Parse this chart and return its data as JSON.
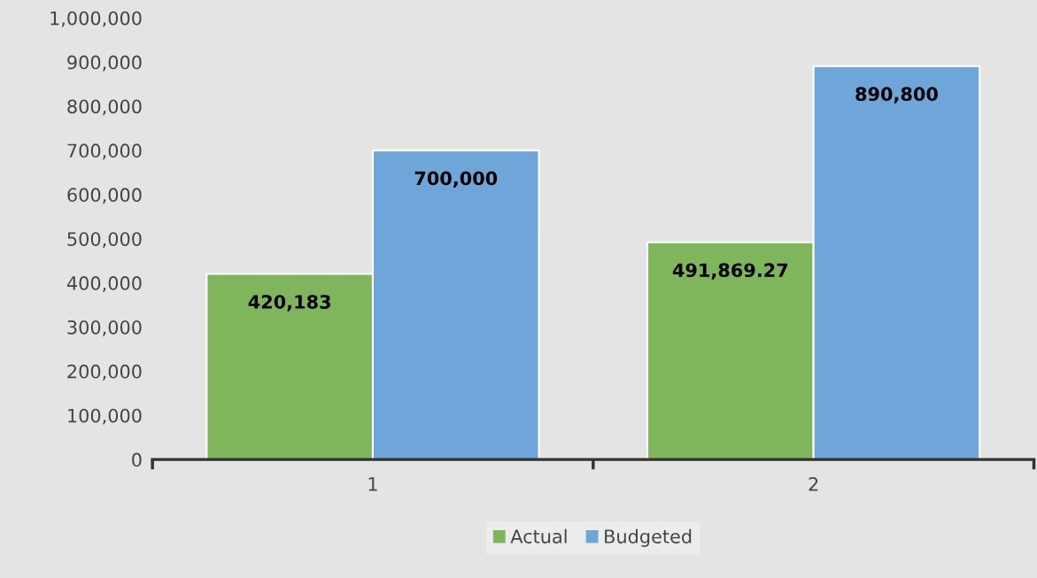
{
  "chart_data": {
    "type": "bar",
    "categories": [
      "1",
      "2"
    ],
    "series": [
      {
        "name": "Actual",
        "color": "#7fb65b",
        "values": [
          420183,
          491869.27
        ],
        "value_labels": [
          "420,183",
          "491,869.27"
        ]
      },
      {
        "name": "Budgeted",
        "color": "#6fa6d9",
        "values": [
          700000,
          890800
        ],
        "value_labels": [
          "700,000",
          "890,800"
        ]
      }
    ],
    "ylim": [
      0,
      1000000
    ],
    "yticks": [
      0,
      {
        "value": 100000,
        "label": "100,000"
      },
      {
        "value": 200000,
        "label": "200,000"
      },
      {
        "value": 300000,
        "label": "300,000"
      },
      {
        "value": 400000,
        "label": "400,000"
      },
      {
        "value": 500000,
        "label": "500,000"
      },
      {
        "value": 600000,
        "label": "600,000"
      },
      {
        "value": 700000,
        "label": "700,000"
      },
      {
        "value": 800000,
        "label": "800,000"
      },
      {
        "value": 900000,
        "label": "900,000"
      },
      {
        "value": 1000000,
        "label": "1,000,000"
      }
    ],
    "grid": false,
    "legend": "bottom"
  }
}
